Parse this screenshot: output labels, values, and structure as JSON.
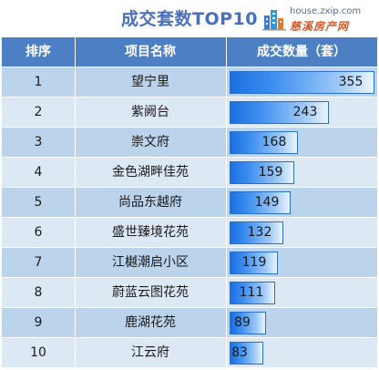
{
  "title": "成交套数TOP10",
  "logo": {
    "url": "house.zxip.com",
    "name": "慈溪房产网"
  },
  "colors": {
    "header": "#4d7fc4",
    "bar_start": "#1c6fe0",
    "bar_end": "#ecf5ff",
    "title": "#4a6fbf"
  },
  "headers": {
    "rank": "排序",
    "name": "项目名称",
    "value": "成交数量（套）"
  },
  "chart_data": {
    "type": "bar",
    "title": "成交套数TOP10",
    "categories": [
      "望宁里",
      "紫阙台",
      "崇文府",
      "金色湖畔佳苑",
      "尚品东越府",
      "盛世臻境花苑",
      "江樾潮启小区",
      "蔚蓝云图花苑",
      "鹿湖花苑",
      "江云府"
    ],
    "ranks": [
      "1",
      "2",
      "3",
      "4",
      "5",
      "6",
      "7",
      "8",
      "9",
      "10"
    ],
    "values": [
      355,
      243,
      168,
      159,
      149,
      132,
      119,
      111,
      89,
      83
    ],
    "xlabel": "项目名称",
    "ylabel": "成交数量（套）",
    "ylim": [
      0,
      355
    ]
  }
}
